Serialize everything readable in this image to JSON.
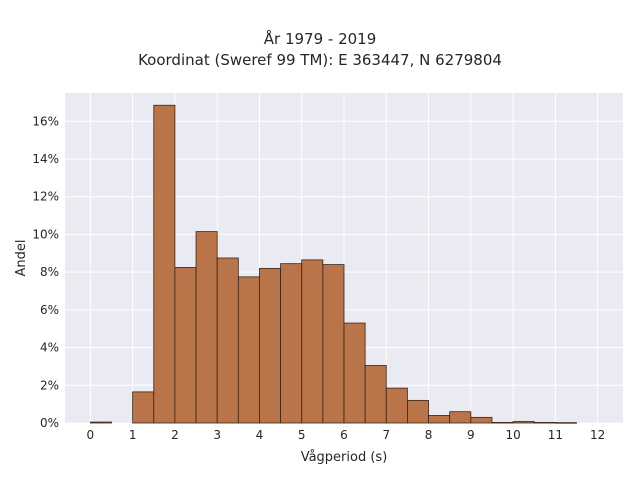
{
  "chart_data": {
    "type": "bar",
    "title_lines": [
      "År 1979 - 2019",
      "Koordinat (Sweref 99 TM): E 363447, N 6279804"
    ],
    "xlabel": "Vågperiod (s)",
    "ylabel": "Andel",
    "xlim": [
      -0.6,
      12.6
    ],
    "ylim": [
      0,
      17.5
    ],
    "xticks": [
      0,
      1,
      2,
      3,
      4,
      5,
      6,
      7,
      8,
      9,
      10,
      11,
      12
    ],
    "yticks": [
      0,
      2,
      4,
      6,
      8,
      10,
      12,
      14,
      16
    ],
    "ytick_format": "%",
    "grid": true,
    "bar_color": "#b5693c",
    "bar_edge_color": "#3a2418",
    "plot_background": "#eaeaf2",
    "bin_width": 0.5,
    "bins": [
      {
        "x0": 0.0,
        "value": 0.05
      },
      {
        "x0": 1.0,
        "value": 1.65
      },
      {
        "x0": 1.5,
        "value": 16.85
      },
      {
        "x0": 2.0,
        "value": 8.25
      },
      {
        "x0": 2.5,
        "value": 10.15
      },
      {
        "x0": 3.0,
        "value": 8.75
      },
      {
        "x0": 3.5,
        "value": 7.75
      },
      {
        "x0": 4.0,
        "value": 8.2
      },
      {
        "x0": 4.5,
        "value": 8.45
      },
      {
        "x0": 5.0,
        "value": 8.65
      },
      {
        "x0": 5.5,
        "value": 8.4
      },
      {
        "x0": 6.0,
        "value": 5.3
      },
      {
        "x0": 6.5,
        "value": 3.05
      },
      {
        "x0": 7.0,
        "value": 1.85
      },
      {
        "x0": 7.5,
        "value": 1.2
      },
      {
        "x0": 8.0,
        "value": 0.4
      },
      {
        "x0": 8.5,
        "value": 0.6
      },
      {
        "x0": 9.0,
        "value": 0.3
      },
      {
        "x0": 9.5,
        "value": 0.03
      },
      {
        "x0": 10.0,
        "value": 0.08
      },
      {
        "x0": 10.5,
        "value": 0.03
      },
      {
        "x0": 11.0,
        "value": 0.02
      }
    ]
  }
}
